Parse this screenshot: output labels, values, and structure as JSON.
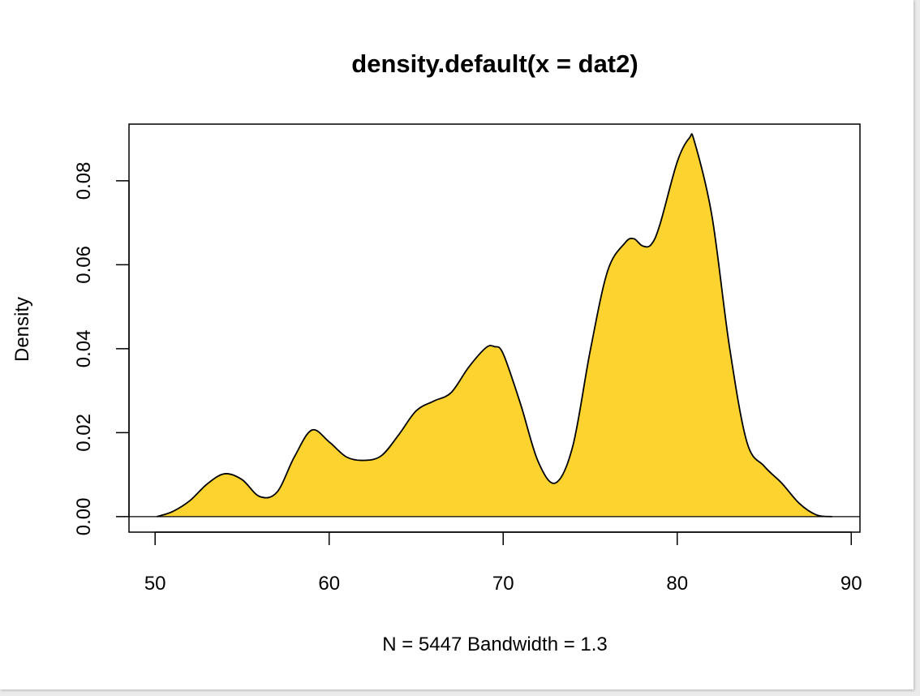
{
  "chart_data": {
    "type": "area",
    "title": "density.default(x = dat2)",
    "xlabel": "N = 5447   Bandwidth = 1.3",
    "ylabel": "Density",
    "xlim": [
      48.5,
      90.5
    ],
    "ylim": [
      -0.0037,
      0.0935
    ],
    "x_ticks": [
      "50",
      "60",
      "70",
      "80",
      "90"
    ],
    "y_ticks": [
      "0.00",
      "0.02",
      "0.04",
      "0.06",
      "0.08"
    ],
    "fill_color": "#FDD32F",
    "line_color": "#000000",
    "x": [
      50.1,
      51,
      52,
      53,
      54,
      55,
      56,
      57,
      58,
      59,
      60,
      61,
      62,
      63,
      64,
      65,
      66,
      67,
      68,
      69,
      69.5,
      70,
      71,
      72,
      73,
      74,
      75,
      76,
      77,
      77.5,
      78,
      78.5,
      79,
      80,
      80.7,
      81,
      82,
      83,
      84,
      85,
      86,
      87,
      88,
      88.9
    ],
    "y": [
      0.0,
      0.0012,
      0.0038,
      0.0078,
      0.0102,
      0.0088,
      0.0048,
      0.0058,
      0.0142,
      0.0206,
      0.0178,
      0.0142,
      0.0134,
      0.0145,
      0.0195,
      0.0252,
      0.0275,
      0.0295,
      0.0355,
      0.0402,
      0.0405,
      0.0388,
      0.0268,
      0.0132,
      0.008,
      0.0168,
      0.0395,
      0.0585,
      0.0652,
      0.0662,
      0.0645,
      0.0648,
      0.0695,
      0.0845,
      0.0902,
      0.0892,
      0.0715,
      0.0405,
      0.0178,
      0.012,
      0.008,
      0.0032,
      0.0004,
      0.0
    ]
  }
}
